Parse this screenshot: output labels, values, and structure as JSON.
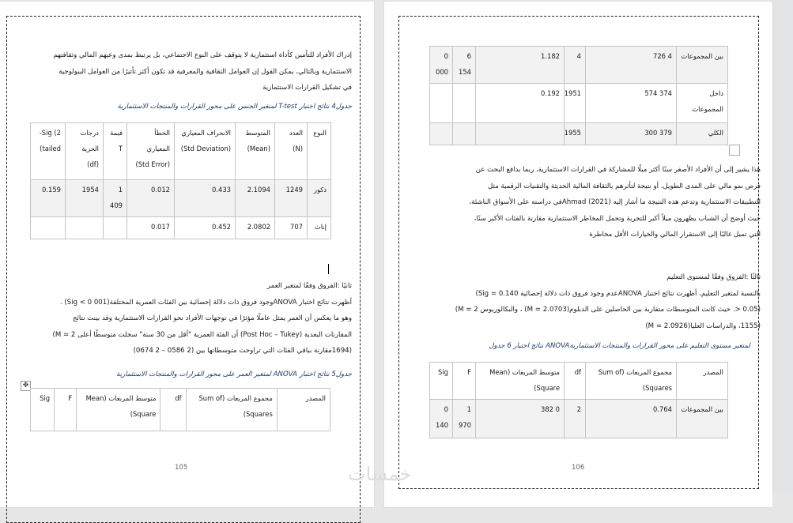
{
  "page_left": {
    "intro_lines": [
      "إدراك الأفراد للتأمين كأداة استثمارية لا يتوقف على النوع الاجتماعي، بل يرتبط بمدى وعيهم المالي وثقافتهم",
      "الاستثمارية  وبالتالي، يمكن القول إن العوامل الثقافية والمعرفية قد تكون أكثر تأثيرًا من العوامل البيولوجية",
      "في تشكيل القرارات الاستثمارية"
    ],
    "table4_caption": "جدول4  نتائج اختبار T-test لمتغير الجنس على محور القرارات والمنتجات الاستثمارية",
    "table4": {
      "header": [
        "النوع",
        "العدد\n(N)",
        "المتوسط\n(Mean)",
        "الانحراف المعياري\n(Std Deviation)",
        "الخطأ\nالمعياري\n(Std Error)",
        "قيمة\nT",
        "درجات\nالحرية\n(df)",
        "Sig (2-\ntailed)"
      ],
      "rows": [
        [
          "ذكور",
          "1249",
          "2.1094",
          "0.433",
          "0.012",
          "1\n409",
          "1954",
          "0.159"
        ],
        [
          "إناث",
          "707",
          "2.0802",
          "0.452",
          "0.017",
          "",
          "",
          ""
        ]
      ]
    },
    "section2_heading": "ثانيًا :الفروق وفقًا لمتغير العمر",
    "section2_lines": [
      "أظهرت نتائج اختبار  ANOVAوجود فروق ذات دلالة إحصائية بين الفئات العمرية المختلفة(001 0 > Sig) .",
      "وهو ما يعكس أن العمر يمثل عاملًا مؤثرًا في توجهات الأفراد نحو القرارات الاستثمارية  وقد بينت نتائج",
      "المقارنات البعدية (Post Hoc – Tukey) أن الفئة العمرية \"أقل من 30 سنة\" سجلت متوسطًا أعلى 2 = M)",
      "(1694مقارنة بباقي الفئات التي تراوحت متوسطاتها بين (2 0586 – 2 0674)"
    ],
    "table5_caption": "جدول5  نتائج اختبار ANOVA لمتغير العمر على محور القرارات والمنتجات الاستثمارية",
    "table5": {
      "header": [
        "المصدر",
        "مجموع المربعات (Sum of\nSquares)",
        "df",
        "متوسط المربعات (Mean\nSquare)",
        "F",
        "Sig"
      ],
      "rows": []
    },
    "page_number": "105"
  },
  "page_right": {
    "table5_cont": {
      "rows": [
        [
          "بين المجموعات",
          "4 726",
          "4",
          "1.182",
          "6\n154",
          "0\n000"
        ],
        [
          "داخل\nالمجموعات",
          "374 574",
          "1951",
          "0.192",
          "",
          ""
        ],
        [
          "الكلي",
          "379 300",
          "1955",
          "",
          "",
          ""
        ]
      ]
    },
    "discussion_lines": [
      "هذا يشير إلى أن الأفراد الأصغر سنًا أكثر ميلًا للمشاركة في القرارات الاستثمارية، ربما بدافع البحث عن",
      "فرص نمو مالي على المدى الطويل، أو نتيجة لتأثرهم بالثقافة المالية الحديثة والتقنيات الرقمية مثل",
      "التطبيقات الاستثمارية  وتدعم هذه النتيجة ما أشار إليه  (2021) Ahmadفي دراسته على الأسواق الناشئة،",
      "حيث أوضح أن الشباب يظهرون ميلاً أكبر للتجربة وتحمل المخاطر الاستثمارية مقارنة بالفئات الأكبر سنًا،",
      "التي تميل غالبًا إلى الاستقرار المالي والخيارات الأقل مخاطرة"
    ],
    "section3_heading": "ثالثًا :الفروق وفقًا لمستوى التعليم",
    "section3_lines": [
      "بالنسبة لمتغير التعليم، أظهرت نتائج اختبار  ANOVAعدم وجود فروق ذات دلالة إحصائية 0.140 = Sig)",
      "(0.05 <. حيث كانت المتوسطات متقاربة بين الحاصلين على الدبلوم(2.0703 = M) ، والبكالوريوس 2 = M)",
      "(1155، والدراسات العليا(2.0926 = M)"
    ],
    "table6_caption": "لمتغير مستوى التعليم على محور القرارات والمنتجات الاستثماريةANOVA نتائج اختبار 6 جدول",
    "table6": {
      "header": [
        "المصدر",
        "مجموع المربعات (Sum of\nSquares)",
        "df",
        "متوسط المربعات (Mean\nSquare)",
        "F",
        "Sig"
      ],
      "rows": [
        [
          "بين المجموعات",
          "0.764",
          "2",
          "0 382",
          "1\n970",
          "0\n140"
        ]
      ]
    },
    "page_number": "106"
  },
  "watermark": "خمسات"
}
